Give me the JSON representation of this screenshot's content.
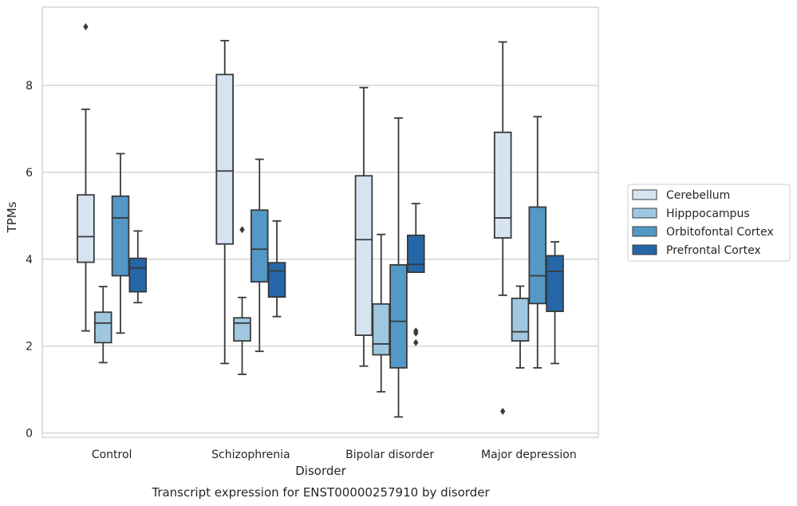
{
  "chart_data": {
    "type": "boxplot",
    "caption": "Transcript expression for ENST00000257910 by disorder",
    "xlabel": "Disorder",
    "ylabel": "TPMs",
    "ylim": [
      -0.1,
      9.8
    ],
    "yticks": [
      0,
      2,
      4,
      6,
      8
    ],
    "grid": true,
    "legend_position": "right",
    "categories": [
      "Control",
      "Schizophrenia",
      "Bipolar disorder",
      "Major depression"
    ],
    "series": [
      {
        "name": "Cerebellum",
        "color": "#d6e4f2",
        "boxes": [
          {
            "whislo": 2.35,
            "q1": 3.93,
            "med": 4.52,
            "q3": 5.48,
            "whishi": 7.45,
            "fliers": [
              9.35
            ]
          },
          {
            "whislo": 1.6,
            "q1": 4.35,
            "med": 6.03,
            "q3": 8.25,
            "whishi": 9.03,
            "fliers": []
          },
          {
            "whislo": 1.54,
            "q1": 2.25,
            "med": 4.45,
            "q3": 5.92,
            "whishi": 7.95,
            "fliers": []
          },
          {
            "whislo": 3.17,
            "q1": 4.49,
            "med": 4.95,
            "q3": 6.92,
            "whishi": 9.0,
            "fliers": [
              0.5
            ]
          }
        ]
      },
      {
        "name": "Hipppocampus",
        "color": "#9fc8e0",
        "boxes": [
          {
            "whislo": 1.62,
            "q1": 2.08,
            "med": 2.53,
            "q3": 2.78,
            "whishi": 3.37,
            "fliers": []
          },
          {
            "whislo": 1.35,
            "q1": 2.12,
            "med": 2.53,
            "q3": 2.65,
            "whishi": 3.12,
            "fliers": [
              4.68
            ]
          },
          {
            "whislo": 0.95,
            "q1": 1.8,
            "med": 2.05,
            "q3": 2.97,
            "whishi": 4.57,
            "fliers": []
          },
          {
            "whislo": 1.5,
            "q1": 2.12,
            "med": 2.33,
            "q3": 3.1,
            "whishi": 3.38,
            "fliers": []
          }
        ]
      },
      {
        "name": "Orbitofontal Cortex",
        "color": "#5398c6",
        "boxes": [
          {
            "whislo": 2.3,
            "q1": 3.62,
            "med": 4.95,
            "q3": 5.45,
            "whishi": 6.43,
            "fliers": []
          },
          {
            "whislo": 1.88,
            "q1": 3.48,
            "med": 4.23,
            "q3": 5.13,
            "whishi": 6.3,
            "fliers": []
          },
          {
            "whislo": 0.37,
            "q1": 1.5,
            "med": 2.57,
            "q3": 3.87,
            "whishi": 7.25,
            "fliers": []
          },
          {
            "whislo": 1.5,
            "q1": 2.98,
            "med": 3.62,
            "q3": 5.2,
            "whishi": 7.28,
            "fliers": []
          }
        ]
      },
      {
        "name": "Prefrontal Cortex",
        "color": "#2566a8",
        "boxes": [
          {
            "whislo": 3.0,
            "q1": 3.25,
            "med": 3.8,
            "q3": 4.02,
            "whishi": 4.65,
            "fliers": []
          },
          {
            "whislo": 2.68,
            "q1": 3.13,
            "med": 3.73,
            "q3": 3.92,
            "whishi": 4.88,
            "fliers": []
          },
          {
            "whislo": 3.7,
            "q1": 3.7,
            "med": 3.88,
            "q3": 4.55,
            "whishi": 5.28,
            "fliers": [
              2.3,
              2.35,
              2.08
            ]
          },
          {
            "whislo": 1.6,
            "q1": 2.8,
            "med": 3.72,
            "q3": 4.08,
            "whishi": 4.4,
            "fliers": []
          }
        ]
      }
    ]
  }
}
